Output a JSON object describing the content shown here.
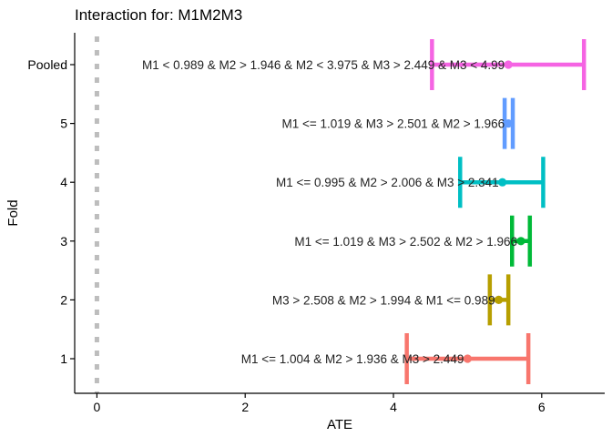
{
  "chart_data": {
    "type": "forest",
    "title": "Interaction for: M1M2M3",
    "xlabel": "ATE",
    "ylabel": "Fold",
    "xlim": [
      -0.3,
      6.85
    ],
    "xticks": [
      0,
      2,
      4,
      6
    ],
    "reference_line_x": 0,
    "grid": false,
    "categories": [
      "1",
      "2",
      "3",
      "4",
      "5",
      "Pooled"
    ],
    "series": [
      {
        "category": "1",
        "estimate": 5.0,
        "lower": 4.18,
        "upper": 5.82,
        "label": "M1 <= 1.004 & M2 > 1.936 & M3 > 2.449",
        "color": "#F8766D"
      },
      {
        "category": "2",
        "estimate": 5.42,
        "lower": 5.3,
        "upper": 5.55,
        "label": "M3 > 2.508 & M2 > 1.994 & M1 <= 0.989",
        "color": "#B79F00"
      },
      {
        "category": "3",
        "estimate": 5.72,
        "lower": 5.6,
        "upper": 5.84,
        "label": "M1 <= 1.019 & M3 > 2.502 & M2 > 1.966",
        "color": "#00BA38"
      },
      {
        "category": "4",
        "estimate": 5.47,
        "lower": 4.9,
        "upper": 6.02,
        "label": "M1 <= 0.995 & M2 > 2.006 & M3 > 2.341",
        "color": "#00BFC4"
      },
      {
        "category": "5",
        "estimate": 5.55,
        "lower": 5.5,
        "upper": 5.61,
        "label": "M1 <= 1.019 & M3 > 2.501 & M2 > 1.966",
        "color": "#619CFF"
      },
      {
        "category": "Pooled",
        "estimate": 5.55,
        "lower": 4.52,
        "upper": 6.57,
        "label": "M1 < 0.989 & M2 > 1.946 & M2 < 3.975 & M3 > 2.449 & M3 < 4.99",
        "color": "#F564E3"
      }
    ]
  }
}
